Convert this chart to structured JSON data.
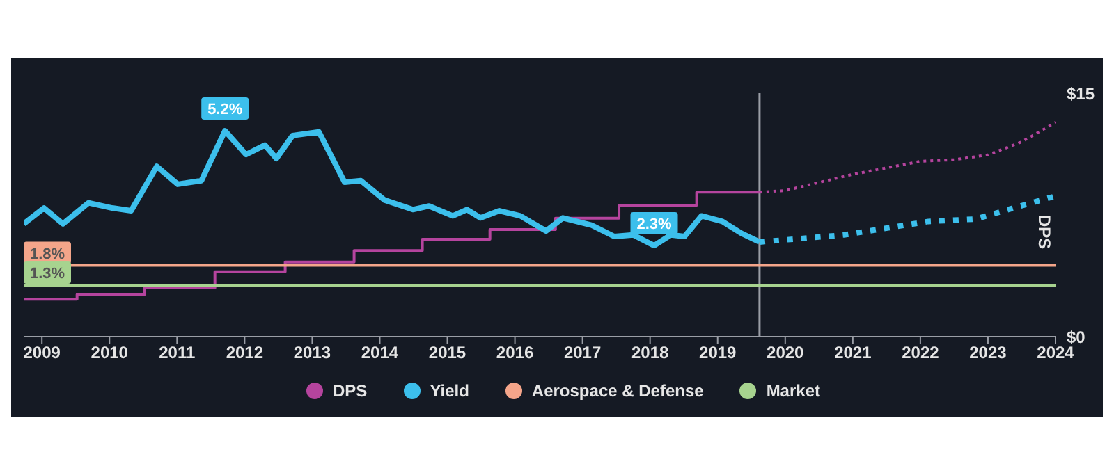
{
  "chart_data": {
    "type": "line",
    "y2label": "DPS",
    "legend": "bottom",
    "marker": "none",
    "xlim": [
      2008.73,
      2024
    ],
    "xticks": [
      2009,
      2010,
      2011,
      2012,
      2013,
      2014,
      2015,
      2016,
      2017,
      2018,
      2019,
      2020,
      2021,
      2022,
      2023,
      2024
    ],
    "ylim": [
      0,
      6.15
    ],
    "y2lim": [
      0,
      15
    ],
    "y2ticks": [
      {
        "value": 0,
        "label": "$0"
      },
      {
        "value": 15,
        "label": "$15"
      }
    ],
    "ref_lines": [
      {
        "axis": "x",
        "value": 2019.62,
        "color": "#9a9ea6"
      }
    ],
    "series": [
      {
        "name": "DPS",
        "type": "step",
        "axis": "y2",
        "color": "#b5449e",
        "line_style": "solid",
        "x": [
          2008.73,
          2009.52,
          2010.52,
          2011.56,
          2012.6,
          2013.62,
          2014.63,
          2015.63,
          2016.6,
          2017.54,
          2018.69,
          2019.62
        ],
        "values": [
          2.3,
          2.6,
          3.0,
          4.0,
          4.6,
          5.3,
          6.0,
          6.6,
          7.3,
          8.1,
          8.9,
          8.9
        ]
      },
      {
        "name": "Yield",
        "axis": "y",
        "color": "#3cbfec",
        "line_style": "solid",
        "x": [
          2008.73,
          2009.03,
          2009.31,
          2009.69,
          2010.04,
          2010.32,
          2010.7,
          2011.01,
          2011.36,
          2011.71,
          2012.02,
          2012.3,
          2012.47,
          2012.71,
          2013.1,
          2013.48,
          2013.72,
          2014.07,
          2014.49,
          2014.73,
          2015.08,
          2015.29,
          2015.49,
          2015.77,
          2016.08,
          2016.46,
          2016.71,
          2017.13,
          2017.47,
          2017.75,
          2018.06,
          2018.31,
          2018.51,
          2018.76,
          2019.07,
          2019.35,
          2019.62
        ],
        "values": [
          2.85,
          3.25,
          2.85,
          3.38,
          3.25,
          3.18,
          4.3,
          3.85,
          3.94,
          5.2,
          4.6,
          4.84,
          4.5,
          5.08,
          5.17,
          3.9,
          3.94,
          3.45,
          3.21,
          3.3,
          3.05,
          3.21,
          3.0,
          3.18,
          3.05,
          2.67,
          3.0,
          2.82,
          2.53,
          2.57,
          2.3,
          2.57,
          2.53,
          3.05,
          2.91,
          2.61,
          2.39
        ],
        "value_labels": [
          null,
          null,
          null,
          null,
          null,
          null,
          null,
          null,
          null,
          "5.2%",
          null,
          null,
          null,
          null,
          null,
          null,
          null,
          null,
          null,
          null,
          null,
          null,
          null,
          null,
          null,
          null,
          null,
          null,
          null,
          null,
          "2.3%",
          null,
          null,
          null,
          null,
          null,
          null
        ]
      },
      {
        "name": "Aerospace & Defense",
        "axis": "y",
        "color": "#f4a58a",
        "line_style": "solid",
        "x": [
          2008.73,
          2024
        ],
        "values": [
          1.8,
          1.8
        ],
        "value_labels": [
          "1.8%",
          null
        ]
      },
      {
        "name": "Market",
        "axis": "y",
        "color": "#a7d38f",
        "line_style": "solid",
        "x": [
          2008.73,
          2024
        ],
        "values": [
          1.3,
          1.3
        ],
        "value_labels": [
          "1.3%",
          null
        ]
      },
      {
        "axis": "y2",
        "color": "#b5449e",
        "line_style": "dotted",
        "x": [
          2019.62,
          2020,
          2020.5,
          2021,
          2021.5,
          2022,
          2022.5,
          2023,
          2023.5,
          2024
        ],
        "values": [
          8.9,
          9.0,
          9.5,
          10.0,
          10.4,
          10.8,
          10.9,
          11.2,
          12.0,
          13.2
        ]
      },
      {
        "axis": "y",
        "color": "#3cbfec",
        "line_style": "dotted",
        "x": [
          2019.62,
          2020.87,
          2022.12,
          2022.82,
          2023.38,
          2024
        ],
        "values": [
          2.39,
          2.57,
          2.91,
          2.97,
          3.25,
          3.55
        ]
      }
    ]
  }
}
